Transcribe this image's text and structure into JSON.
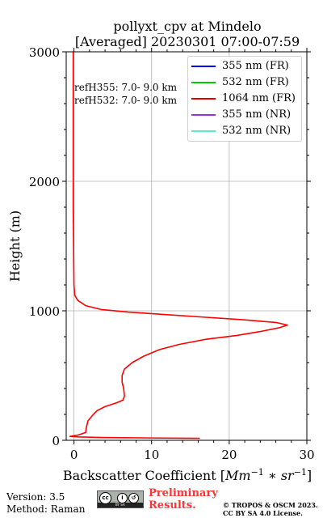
{
  "chart_data": {
    "type": "line",
    "title": "pollyxt_cpv at Mindelo",
    "subtitle": "[Averaged] 20230301 07:00-07:59",
    "xlabel_prefix": "Backscatter Coefficient ",
    "xlabel_unit_parts": [
      "[",
      "Mm",
      "−1",
      " ∗ ",
      "sr",
      "−1",
      "]"
    ],
    "ylabel": "Height (m)",
    "xlim": [
      -1,
      30
    ],
    "ylim": [
      0,
      3000
    ],
    "x_ticks": [
      0,
      10,
      20,
      30
    ],
    "y_ticks": [
      0,
      1000,
      2000,
      3000
    ],
    "grid": true,
    "legend_position": "top-right",
    "annotations": [
      "refH355:  7.0- 9.0 km",
      "refH532:  7.0- 9.0 km"
    ],
    "series": [
      {
        "name": "355 nm (FR)",
        "color": "#0000ff",
        "points": []
      },
      {
        "name": "532 nm (FR)",
        "color": "#00cc00",
        "points": []
      },
      {
        "name": "1064 nm (FR)",
        "color": "#ff0000",
        "points": [
          [
            16.2,
            15
          ],
          [
            10,
            18
          ],
          [
            3,
            22
          ],
          [
            0.5,
            26
          ],
          [
            -0.5,
            30
          ],
          [
            0.5,
            40
          ],
          [
            1.5,
            60
          ],
          [
            1.6,
            100
          ],
          [
            1.8,
            150
          ],
          [
            2.5,
            200
          ],
          [
            3,
            230
          ],
          [
            4,
            260
          ],
          [
            5.5,
            290
          ],
          [
            6.3,
            310
          ],
          [
            6.5,
            340
          ],
          [
            6.4,
            400
          ],
          [
            6.2,
            450
          ],
          [
            6.2,
            500
          ],
          [
            6.5,
            550
          ],
          [
            7.5,
            600
          ],
          [
            9,
            650
          ],
          [
            11,
            700
          ],
          [
            13.5,
            740
          ],
          [
            17,
            780
          ],
          [
            21,
            810
          ],
          [
            24,
            840
          ],
          [
            26.5,
            870
          ],
          [
            27.5,
            890
          ],
          [
            26,
            910
          ],
          [
            22,
            930
          ],
          [
            17,
            950
          ],
          [
            12,
            970
          ],
          [
            7,
            990
          ],
          [
            3.5,
            1010
          ],
          [
            1.5,
            1040
          ],
          [
            0.5,
            1080
          ],
          [
            0.1,
            1120
          ],
          [
            0,
            1200
          ],
          [
            -0.05,
            1500
          ],
          [
            -0.1,
            1800
          ],
          [
            -0.1,
            2200
          ],
          [
            -0.1,
            2600
          ],
          [
            -0.1,
            3000
          ]
        ]
      },
      {
        "name": "355 nm (NR)",
        "color": "#9933dd",
        "points": []
      },
      {
        "name": "532 nm (NR)",
        "color": "#55eecc",
        "points": []
      }
    ]
  },
  "footer": {
    "version": "Version: 3.5",
    "method": "Method: Raman",
    "preliminary_line1": "Preliminary",
    "preliminary_line2": "Results.",
    "copyright_line1": "© TROPOS & OSCM 2023.",
    "copyright_line2": "CC BY SA 4.0 License.",
    "badge_text": "BY  SA"
  },
  "icons": [
    "cc-license-icon",
    "by-attribution-icon",
    "share-alike-icon"
  ]
}
